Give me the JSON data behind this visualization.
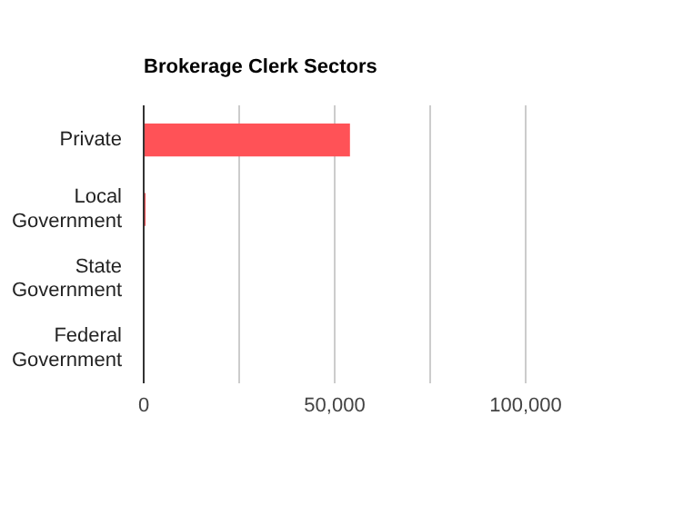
{
  "chart_data": {
    "type": "bar",
    "orientation": "horizontal",
    "title": "Brokerage Clerk Sectors",
    "categories": [
      "Private",
      "Local Government",
      "State Government",
      "Federal Government"
    ],
    "values": [
      54000,
      500,
      0,
      0
    ],
    "color": "#ff5257",
    "xlim": [
      0,
      100000
    ],
    "xticks": [
      0,
      {
        "value": 25000,
        "label": null
      },
      {
        "value": 50000,
        "label": "50,000"
      },
      {
        "value": 75000,
        "label": null
      },
      {
        "value": 100000,
        "label": "100,000"
      }
    ],
    "grid": "x",
    "legend": false
  }
}
